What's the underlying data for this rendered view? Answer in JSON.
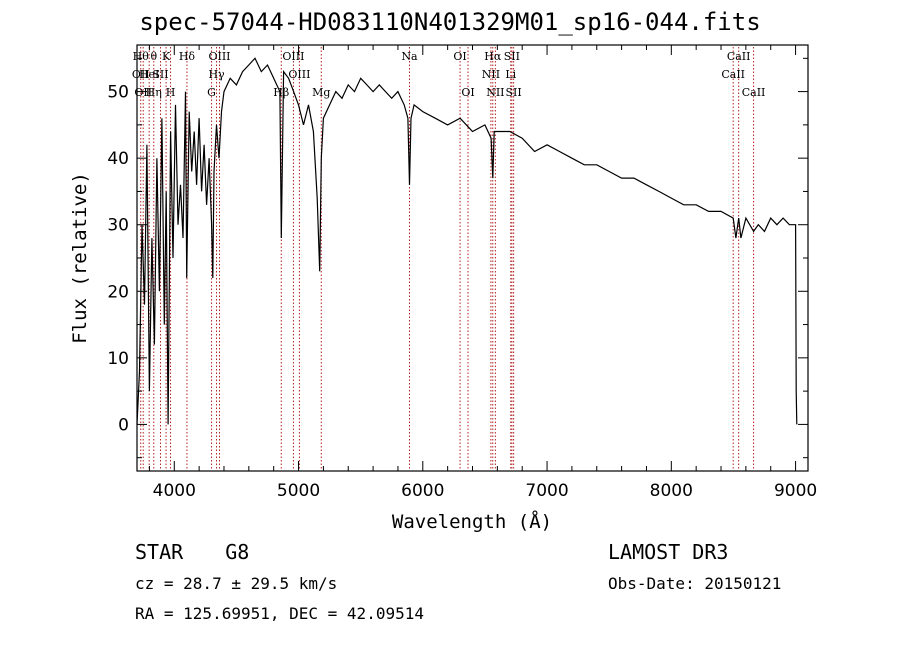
{
  "chart_data": {
    "type": "line",
    "title": "spec-57044-HD083110N401329M01_sp16-044.fits",
    "xlabel": "Wavelength (Å)",
    "ylabel": "Flux (relative)",
    "xlim": [
      3700,
      9100
    ],
    "ylim": [
      -7,
      57
    ],
    "xticks": [
      4000,
      5000,
      6000,
      7000,
      8000,
      9000
    ],
    "yticks": [
      0,
      10,
      20,
      30,
      40,
      50
    ],
    "xtick_labels": [
      "4000",
      "5000",
      "6000",
      "7000",
      "8000",
      "9000"
    ],
    "ytick_labels": [
      "0",
      "10",
      "20",
      "30",
      "40",
      "50"
    ],
    "series": [
      {
        "name": "flux",
        "x": [
          3700,
          3720,
          3740,
          3760,
          3780,
          3800,
          3820,
          3840,
          3860,
          3880,
          3900,
          3920,
          3935,
          3950,
          3970,
          3990,
          4010,
          4030,
          4050,
          4070,
          4090,
          4100,
          4120,
          4140,
          4160,
          4180,
          4200,
          4220,
          4240,
          4260,
          4280,
          4300,
          4310,
          4320,
          4340,
          4360,
          4380,
          4400,
          4450,
          4500,
          4550,
          4600,
          4650,
          4700,
          4750,
          4800,
          4850,
          4861,
          4880,
          4920,
          4960,
          5000,
          5040,
          5080,
          5120,
          5150,
          5170,
          5183,
          5200,
          5250,
          5300,
          5350,
          5400,
          5450,
          5500,
          5550,
          5600,
          5650,
          5700,
          5750,
          5800,
          5850,
          5880,
          5893,
          5905,
          5930,
          6000,
          6100,
          6200,
          6300,
          6400,
          6500,
          6550,
          6563,
          6575,
          6600,
          6700,
          6800,
          6900,
          7000,
          7100,
          7200,
          7300,
          7400,
          7500,
          7600,
          7700,
          7800,
          7900,
          8000,
          8100,
          8200,
          8300,
          8400,
          8498,
          8520,
          8542,
          8560,
          8600,
          8662,
          8700,
          8750,
          8800,
          8850,
          8900,
          8950,
          8980,
          9000,
          9005,
          9010
        ],
        "values": [
          0,
          8,
          30,
          18,
          42,
          5,
          28,
          12,
          40,
          20,
          46,
          15,
          35,
          0,
          44,
          25,
          48,
          30,
          36,
          28,
          50,
          22,
          47,
          38,
          44,
          36,
          46,
          35,
          42,
          33,
          40,
          30,
          22,
          38,
          45,
          40,
          47,
          50,
          52,
          51,
          53,
          54,
          55,
          53,
          54,
          52,
          50,
          28,
          53,
          52,
          50,
          48,
          45,
          48,
          44,
          34,
          23,
          40,
          46,
          48,
          50,
          49,
          51,
          50,
          52,
          51,
          50,
          51,
          50,
          49,
          50,
          48,
          46,
          36,
          46,
          48,
          47,
          46,
          45,
          46,
          44,
          45,
          43,
          37,
          44,
          44,
          44,
          43,
          41,
          42,
          41,
          40,
          39,
          39,
          38,
          37,
          37,
          36,
          35,
          34,
          33,
          33,
          32,
          32,
          31,
          28,
          31,
          28,
          31,
          29,
          30,
          29,
          31,
          30,
          31,
          30,
          30,
          30,
          5,
          0
        ]
      }
    ],
    "lines": [
      {
        "x": 3730,
        "labels": [
          "Hθ",
          "OII"
        ]
      },
      {
        "x": 3750,
        "labels": [
          "",
          "",
          "OII"
        ]
      },
      {
        "x": 3798,
        "labels": [
          "",
          "HeI"
        ]
      },
      {
        "x": 3835,
        "labels": [
          "θ",
          "",
          "Hη"
        ]
      },
      {
        "x": 3889,
        "labels": [
          "",
          "SII"
        ]
      },
      {
        "x": 3934,
        "labels": [
          "K"
        ]
      },
      {
        "x": 3970,
        "labels": [
          "",
          "",
          "H"
        ]
      },
      {
        "x": 4102,
        "labels": [
          "Hδ"
        ]
      },
      {
        "x": 4300,
        "labels": [
          "",
          "",
          "G"
        ]
      },
      {
        "x": 4340,
        "labels": [
          "",
          "Hγ"
        ]
      },
      {
        "x": 4364,
        "labels": [
          "OIII"
        ]
      },
      {
        "x": 4861,
        "labels": [
          "",
          "",
          "Hβ"
        ]
      },
      {
        "x": 4959,
        "labels": [
          "OIII"
        ]
      },
      {
        "x": 5007,
        "labels": [
          "",
          "OIII"
        ]
      },
      {
        "x": 5183,
        "labels": [
          "",
          "",
          "Mg"
        ]
      },
      {
        "x": 5893,
        "labels": [
          "Na"
        ]
      },
      {
        "x": 6300,
        "labels": [
          "OI"
        ]
      },
      {
        "x": 6364,
        "labels": [
          "",
          "",
          "OI"
        ]
      },
      {
        "x": 6548,
        "labels": [
          "",
          "NII"
        ]
      },
      {
        "x": 6563,
        "labels": [
          "Hα"
        ]
      },
      {
        "x": 6584,
        "labels": [
          "",
          "",
          "NII"
        ]
      },
      {
        "x": 6708,
        "labels": [
          "",
          "Li"
        ]
      },
      {
        "x": 6717,
        "labels": [
          "SII"
        ]
      },
      {
        "x": 6731,
        "labels": [
          "",
          "",
          "SII"
        ]
      },
      {
        "x": 8498,
        "labels": [
          "",
          "CaII"
        ]
      },
      {
        "x": 8542,
        "labels": [
          "CaII"
        ]
      },
      {
        "x": 8662,
        "labels": [
          "",
          "",
          "CaII"
        ]
      }
    ]
  },
  "info": {
    "object_class": "STAR",
    "subclass": "G8",
    "survey": "LAMOST DR3",
    "cz": "cz = 28.7 ± 29.5 km/s",
    "obs_date": "Obs-Date: 20150121",
    "coords": "RA = 125.69951, DEC =  42.09514"
  }
}
